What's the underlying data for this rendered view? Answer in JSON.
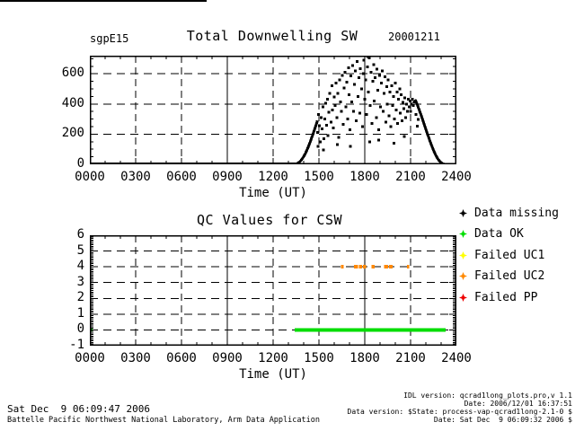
{
  "title": {
    "site": "sgpE15",
    "main": "Total Downwelling SW",
    "date": "20001211"
  },
  "legend": {
    "items": [
      {
        "label": "Data missing",
        "color": "#000000"
      },
      {
        "label": "Data OK",
        "color": "#00dd00"
      },
      {
        "label": "Failed UC1",
        "color": "#ffff00"
      },
      {
        "label": "Failed UC2",
        "color": "#ff8800"
      },
      {
        "label": "Failed PP",
        "color": "#ee0000"
      }
    ]
  },
  "footer": {
    "left_line1": "Sat Dec  9 06:09:47 2006",
    "left_line2": "Battelle Pacific Northwest National Laboratory, Arm Data Application",
    "right_lines": [
      "IDL version: qcrad1long_plots.pro,v 1.1",
      "Date: 2006/12/01 16:37:51",
      "Data version: $State: process-vap-qcrad1long-2.1-0 $",
      "Date: Sat Dec  9 06:09:32 2006 $"
    ]
  },
  "chart_data": [
    {
      "type": "scatter",
      "site": "sgpE15",
      "title": "Total Downwelling SW",
      "date_label": "20001211",
      "xlabel": "Time (UT)",
      "ylabel": "",
      "xlim": [
        0,
        24
      ],
      "ylim": [
        0,
        720
      ],
      "x_minor_step": 1,
      "y_minor_step": 50,
      "xticks_major_hours": [
        0,
        3,
        6,
        9,
        12,
        15,
        18,
        21,
        24
      ],
      "xtick_labels": [
        "0000",
        "0300",
        "0600",
        "0900",
        "1200",
        "1500",
        "1800",
        "2100",
        "2400"
      ],
      "yticks": [
        [
          0,
          "0"
        ],
        [
          200,
          "200"
        ],
        [
          400,
          "400"
        ],
        [
          600,
          "600"
        ]
      ],
      "grid_x_hours": [
        3,
        6,
        9,
        12,
        15,
        18,
        21
      ],
      "solid_x_hours": [
        9,
        18
      ],
      "grid_y_values": [
        200,
        400,
        600
      ],
      "grid_on": true,
      "marker_color": "#000000",
      "baseline": {
        "t0": 0,
        "t1": 13.5,
        "value": 0
      },
      "rise_line": [
        [
          13.4,
          1
        ],
        [
          13.5,
          3
        ],
        [
          13.58,
          6
        ],
        [
          13.65,
          10
        ],
        [
          13.72,
          15
        ],
        [
          13.78,
          21
        ],
        [
          13.84,
          28
        ],
        [
          13.9,
          36
        ],
        [
          13.96,
          45
        ],
        [
          14.02,
          55
        ],
        [
          14.08,
          66
        ],
        [
          14.14,
          78
        ],
        [
          14.2,
          91
        ],
        [
          14.26,
          105
        ],
        [
          14.32,
          120
        ],
        [
          14.38,
          136
        ],
        [
          14.44,
          152
        ],
        [
          14.5,
          169
        ],
        [
          14.56,
          186
        ],
        [
          14.62,
          204
        ],
        [
          14.68,
          222
        ],
        [
          14.74,
          240
        ],
        [
          14.8,
          258
        ],
        [
          14.86,
          276
        ],
        [
          14.9,
          290
        ]
      ],
      "fall_line": [
        [
          21.3,
          430
        ],
        [
          21.36,
          415
        ],
        [
          21.42,
          400
        ],
        [
          21.48,
          384
        ],
        [
          21.54,
          368
        ],
        [
          21.6,
          351
        ],
        [
          21.66,
          334
        ],
        [
          21.72,
          317
        ],
        [
          21.78,
          299
        ],
        [
          21.84,
          281
        ],
        [
          21.9,
          263
        ],
        [
          21.96,
          245
        ],
        [
          22.02,
          227
        ],
        [
          22.08,
          209
        ],
        [
          22.14,
          191
        ],
        [
          22.2,
          174
        ],
        [
          22.26,
          157
        ],
        [
          22.32,
          140
        ],
        [
          22.38,
          124
        ],
        [
          22.44,
          109
        ],
        [
          22.5,
          94
        ],
        [
          22.56,
          80
        ],
        [
          22.62,
          67
        ],
        [
          22.68,
          55
        ],
        [
          22.74,
          44
        ],
        [
          22.8,
          34
        ],
        [
          22.86,
          26
        ],
        [
          22.92,
          19
        ],
        [
          22.98,
          13
        ],
        [
          23.04,
          8
        ],
        [
          23.1,
          5
        ],
        [
          23.16,
          3
        ],
        [
          23.22,
          1
        ],
        [
          23.3,
          0
        ],
        [
          23.4,
          0
        ]
      ],
      "points": [
        [
          14.92,
          210
        ],
        [
          14.98,
          330
        ],
        [
          15.03,
          255
        ],
        [
          15.08,
          150
        ],
        [
          15.14,
          310
        ],
        [
          15.2,
          235
        ],
        [
          15.26,
          380
        ],
        [
          15.31,
          170
        ],
        [
          15.37,
          300
        ],
        [
          15.43,
          405
        ],
        [
          15.49,
          260
        ],
        [
          15.55,
          430
        ],
        [
          15.6,
          190
        ],
        [
          15.66,
          345
        ],
        [
          15.72,
          470
        ],
        [
          15.78,
          280
        ],
        [
          15.84,
          520
        ],
        [
          15.89,
          360
        ],
        [
          15.95,
          240
        ],
        [
          16.01,
          445
        ],
        [
          16.07,
          390
        ],
        [
          16.12,
          540
        ],
        [
          16.18,
          310
        ],
        [
          16.24,
          470
        ],
        [
          16.3,
          180
        ],
        [
          16.35,
          560
        ],
        [
          16.41,
          415
        ],
        [
          16.47,
          350
        ],
        [
          16.53,
          590
        ],
        [
          16.58,
          265
        ],
        [
          16.64,
          505
        ],
        [
          16.7,
          610
        ],
        [
          16.75,
          380
        ],
        [
          16.81,
          545
        ],
        [
          16.87,
          300
        ],
        [
          16.93,
          640
        ],
        [
          16.98,
          460
        ],
        [
          17.04,
          230
        ],
        [
          17.1,
          585
        ],
        [
          17.15,
          415
        ],
        [
          17.21,
          655
        ],
        [
          17.27,
          350
        ],
        [
          17.32,
          530
        ],
        [
          17.38,
          620
        ],
        [
          17.44,
          290
        ],
        [
          17.5,
          680
        ],
        [
          17.55,
          450
        ],
        [
          17.61,
          575
        ],
        [
          17.67,
          340
        ],
        [
          17.72,
          635
        ],
        [
          17.78,
          500
        ],
        [
          17.84,
          250
        ],
        [
          17.9,
          600
        ],
        [
          17.95,
          690
        ],
        [
          18.01,
          430
        ],
        [
          18.07,
          560
        ],
        [
          18.12,
          330
        ],
        [
          18.18,
          645
        ],
        [
          18.24,
          480
        ],
        [
          18.29,
          705
        ],
        [
          18.35,
          390
        ],
        [
          18.41,
          610
        ],
        [
          18.46,
          270
        ],
        [
          18.52,
          550
        ],
        [
          18.58,
          660
        ],
        [
          18.63,
          420
        ],
        [
          18.69,
          575
        ],
        [
          18.75,
          310
        ],
        [
          18.8,
          630
        ],
        [
          18.86,
          490
        ],
        [
          18.92,
          230
        ],
        [
          18.97,
          590
        ],
        [
          19.03,
          380
        ],
        [
          19.09,
          540
        ],
        [
          19.14,
          620
        ],
        [
          19.2,
          350
        ],
        [
          19.26,
          470
        ],
        [
          19.31,
          580
        ],
        [
          19.37,
          280
        ],
        [
          19.43,
          515
        ],
        [
          19.48,
          400
        ],
        [
          19.54,
          560
        ],
        [
          19.6,
          320
        ],
        [
          19.65,
          480
        ],
        [
          19.71,
          250
        ],
        [
          19.77,
          520
        ],
        [
          19.82,
          390
        ],
        [
          19.88,
          450
        ],
        [
          19.94,
          300
        ],
        [
          19.99,
          540
        ],
        [
          20.05,
          360
        ],
        [
          20.11,
          480
        ],
        [
          20.16,
          270
        ],
        [
          20.22,
          430
        ],
        [
          20.28,
          500
        ],
        [
          20.33,
          340
        ],
        [
          20.39,
          460
        ],
        [
          20.45,
          290
        ],
        [
          20.5,
          410
        ],
        [
          20.56,
          370
        ],
        [
          20.62,
          440
        ],
        [
          20.67,
          310
        ],
        [
          20.73,
          400
        ],
        [
          20.79,
          350
        ],
        [
          20.84,
          430
        ],
        [
          20.9,
          380
        ],
        [
          20.96,
          420
        ],
        [
          21.01,
          350
        ],
        [
          21.07,
          400
        ],
        [
          21.12,
          430
        ],
        [
          21.18,
          390
        ],
        [
          21.24,
          415
        ],
        [
          16.2,
          130
        ],
        [
          17.06,
          120
        ],
        [
          18.33,
          150
        ],
        [
          18.9,
          160
        ],
        [
          19.92,
          140
        ],
        [
          20.6,
          185
        ],
        [
          18.2,
          715
        ],
        [
          21.35,
          330
        ],
        [
          21.5,
          298
        ],
        [
          21.45,
          252
        ],
        [
          15.3,
          95
        ],
        [
          14.95,
          120
        ]
      ]
    },
    {
      "type": "scatter",
      "title": "QC Values for CSW",
      "xlabel": "Time (UT)",
      "ylabel": "",
      "xlim": [
        0,
        24
      ],
      "ylim": [
        -1,
        6
      ],
      "x_minor_step": 1,
      "y_minor_step": 0.1,
      "xticks_major_hours": [
        0,
        3,
        6,
        9,
        12,
        15,
        18,
        21,
        24
      ],
      "xtick_labels": [
        "0000",
        "0300",
        "0600",
        "0900",
        "1200",
        "1500",
        "1800",
        "2100",
        "2400"
      ],
      "yticks": [
        [
          -1,
          "-1"
        ],
        [
          0,
          "0"
        ],
        [
          1,
          "1"
        ],
        [
          2,
          "2"
        ],
        [
          3,
          "3"
        ],
        [
          4,
          "4"
        ],
        [
          5,
          "5"
        ],
        [
          6,
          "6"
        ]
      ],
      "grid_x_hours": [
        3,
        6,
        9,
        12,
        15,
        18,
        21
      ],
      "solid_x_hours": [
        9,
        18
      ],
      "grid_y_values": [
        0,
        1,
        2,
        3,
        4,
        5
      ],
      "grid_on": true,
      "series": [
        {
          "name": "Data OK",
          "color": "#00dd00",
          "value": 0,
          "segments": [
            [
              13.4,
              23.3
            ]
          ],
          "points": [
            [
              0.05,
              0
            ]
          ]
        },
        {
          "name": "Failed UC2",
          "color": "#ff8800",
          "value": 4,
          "segments": [
            [
              16.45,
              16.62
            ],
            [
              17.3,
              17.56
            ],
            [
              17.62,
              17.82
            ],
            [
              17.88,
              18.08
            ],
            [
              18.45,
              18.66
            ],
            [
              19.25,
              19.52
            ],
            [
              19.58,
              19.82
            ],
            [
              20.75,
              20.92
            ]
          ],
          "points": []
        }
      ]
    }
  ]
}
